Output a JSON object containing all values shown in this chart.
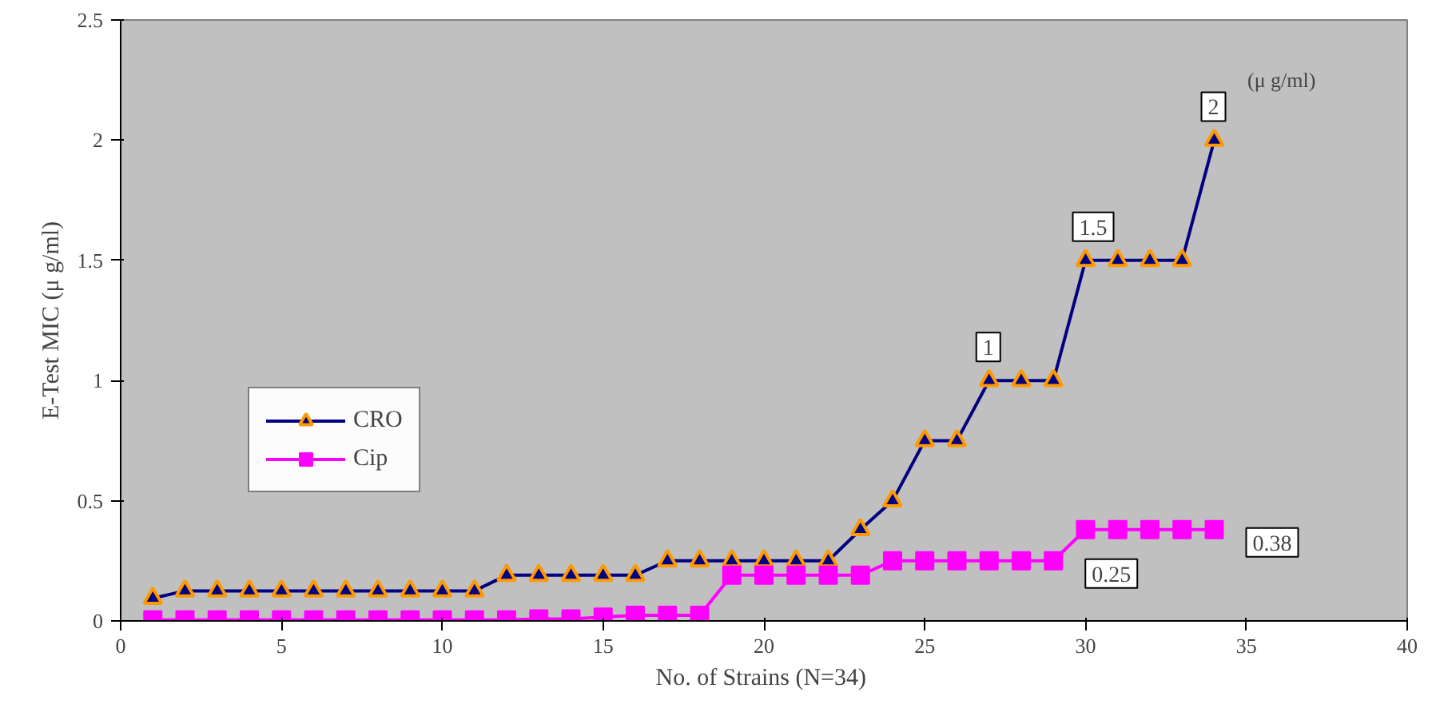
{
  "chart_data": {
    "type": "line",
    "xlabel": "No. of Strains  (N=34)",
    "ylabel": "E-Test MIC (μ g/ml)",
    "x": [
      1,
      2,
      3,
      4,
      5,
      6,
      7,
      8,
      9,
      10,
      11,
      12,
      13,
      14,
      15,
      16,
      17,
      18,
      19,
      20,
      21,
      22,
      23,
      24,
      25,
      26,
      27,
      28,
      29,
      30,
      31,
      32,
      33,
      34
    ],
    "series": [
      {
        "name": "CRO",
        "color": "#000080",
        "marker": "triangle",
        "values": [
          0.094,
          0.125,
          0.125,
          0.125,
          0.125,
          0.125,
          0.125,
          0.125,
          0.125,
          0.125,
          0.125,
          0.19,
          0.19,
          0.19,
          0.19,
          0.19,
          0.25,
          0.25,
          0.25,
          0.25,
          0.25,
          0.25,
          0.38,
          0.5,
          0.75,
          0.75,
          1,
          1,
          1,
          1.5,
          1.5,
          1.5,
          1.5,
          2
        ]
      },
      {
        "name": "Cip",
        "color": "#ff00ff",
        "marker": "square",
        "values": [
          0.004,
          0.004,
          0.004,
          0.004,
          0.004,
          0.004,
          0.004,
          0.004,
          0.004,
          0.004,
          0.004,
          0.004,
          0.008,
          0.008,
          0.016,
          0.023,
          0.023,
          0.023,
          0.19,
          0.19,
          0.19,
          0.19,
          0.19,
          0.25,
          0.25,
          0.25,
          0.25,
          0.25,
          0.25,
          0.38,
          0.38,
          0.38,
          0.38,
          0.38
        ]
      }
    ],
    "annotations": [
      {
        "text": "2",
        "x": 34,
        "y": 2
      },
      {
        "text": "1.5",
        "x": 30,
        "y": 1.5
      },
      {
        "text": "1",
        "x": 27,
        "y": 1
      },
      {
        "text": "0.25",
        "x": 29,
        "y": 0.25
      },
      {
        "text": "0.38",
        "x": 34,
        "y": 0.38
      },
      "(μ g/ml)"
    ],
    "xlim": [
      0,
      40
    ],
    "xticks": [
      0,
      5,
      10,
      15,
      20,
      25,
      30,
      35,
      40
    ],
    "ylim": [
      0,
      2.5
    ],
    "yticks": [
      0,
      0.5,
      1,
      1.5,
      2,
      2.5
    ],
    "grid": false,
    "legend": "left"
  }
}
